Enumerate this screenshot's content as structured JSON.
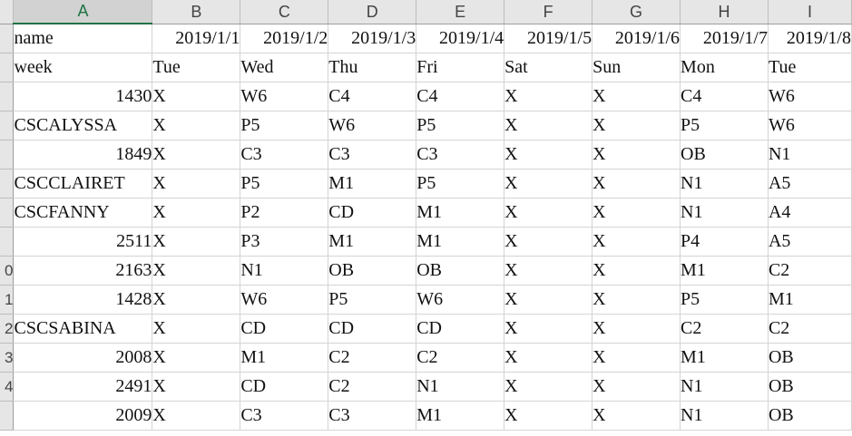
{
  "columns": [
    "A",
    "B",
    "C",
    "D",
    "E",
    "F",
    "G",
    "H",
    "I"
  ],
  "selected_column": "A",
  "row_numbers": [
    "",
    "",
    "",
    "",
    "",
    "",
    "",
    "",
    "0",
    "1",
    "2",
    "3",
    "4"
  ],
  "rows": [
    [
      "name",
      "2019/1/1",
      "2019/1/2",
      "2019/1/3",
      "2019/1/4",
      "2019/1/5",
      "2019/1/6",
      "2019/1/7",
      "2019/1/8"
    ],
    [
      "week",
      "Tue",
      "Wed",
      "Thu",
      "Fri",
      "Sat",
      "Sun",
      "Mon",
      "Tue"
    ],
    [
      "1430",
      "X",
      "W6",
      "C4",
      "C4",
      "X",
      "X",
      "C4",
      "W6"
    ],
    [
      "CSCALYSSA",
      "X",
      "P5",
      "W6",
      "P5",
      "X",
      "X",
      "P5",
      "W6"
    ],
    [
      "1849",
      "X",
      "C3",
      "C3",
      "C3",
      "X",
      "X",
      "OB",
      "N1"
    ],
    [
      "CSCCLAIRET",
      "X",
      "P5",
      "M1",
      "P5",
      "X",
      "X",
      "N1",
      "A5"
    ],
    [
      "CSCFANNY",
      "X",
      "P2",
      "CD",
      "M1",
      "X",
      "X",
      "N1",
      "A4"
    ],
    [
      "2511",
      "X",
      "P3",
      "M1",
      "M1",
      "X",
      "X",
      "P4",
      "A5"
    ],
    [
      "2163",
      "X",
      "N1",
      "OB",
      "OB",
      "X",
      "X",
      "M1",
      "C2"
    ],
    [
      "1428",
      "X",
      "W6",
      "P5",
      "W6",
      "X",
      "X",
      "P5",
      "M1"
    ],
    [
      "CSCSABINA",
      "X",
      "CD",
      "CD",
      "CD",
      "X",
      "X",
      "C2",
      "C2"
    ],
    [
      "2008",
      "X",
      "M1",
      "C2",
      "C2",
      "X",
      "X",
      "M1",
      "OB"
    ],
    [
      "2491",
      "X",
      "CD",
      "C2",
      "N1",
      "X",
      "X",
      "N1",
      "OB"
    ],
    [
      "2009",
      "X",
      "C3",
      "C3",
      "M1",
      "X",
      "X",
      "N1",
      "OB"
    ]
  ]
}
